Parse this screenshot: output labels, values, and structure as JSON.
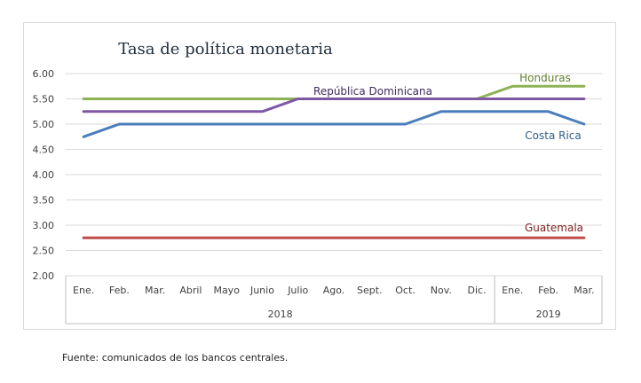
{
  "chart_data": {
    "type": "line",
    "title": "Tasa de política monetaria",
    "xlabel": "",
    "ylabel": "",
    "ylim": [
      2.0,
      6.0
    ],
    "yticks": [
      "6.00",
      "5.50",
      "5.00",
      "4.50",
      "4.00",
      "3.50",
      "3.00",
      "2.50",
      "2.00"
    ],
    "categories": [
      "Ene.",
      "Feb.",
      "Mar.",
      "Abril",
      "Mayo",
      "Junio",
      "Julio",
      "Ago.",
      "Sept.",
      "Oct.",
      "Nov.",
      "Dic.",
      "Ene.",
      "Feb.",
      "Mar."
    ],
    "year_groups": [
      {
        "label": "2018",
        "count": 12
      },
      {
        "label": "2019",
        "count": 3
      }
    ],
    "grid": true,
    "legend": "none",
    "series": [
      {
        "name": "Honduras",
        "color": "#8DB255",
        "values": [
          5.5,
          5.5,
          5.5,
          5.5,
          5.5,
          5.5,
          5.5,
          5.5,
          5.5,
          5.5,
          5.5,
          5.5,
          5.75,
          5.75,
          5.75
        ]
      },
      {
        "name": "República Dominicana",
        "color": "#7E57A5",
        "values": [
          5.25,
          5.25,
          5.25,
          5.25,
          5.25,
          5.25,
          5.5,
          5.5,
          5.5,
          5.5,
          5.5,
          5.5,
          5.5,
          5.5,
          5.5
        ]
      },
      {
        "name": "Costa Rica",
        "color": "#4A7EBB",
        "values": [
          4.75,
          5.0,
          5.0,
          5.0,
          5.0,
          5.0,
          5.0,
          5.0,
          5.0,
          5.0,
          5.25,
          5.25,
          5.25,
          5.25,
          5.0
        ]
      },
      {
        "name": "Guatemala",
        "color": "#BE4B48",
        "values": [
          2.75,
          2.75,
          2.75,
          2.75,
          2.75,
          2.75,
          2.75,
          2.75,
          2.75,
          2.75,
          2.75,
          2.75,
          2.75,
          2.75,
          2.75
        ]
      }
    ]
  },
  "source_note": "Fuente: comunicados de los bancos centrales."
}
